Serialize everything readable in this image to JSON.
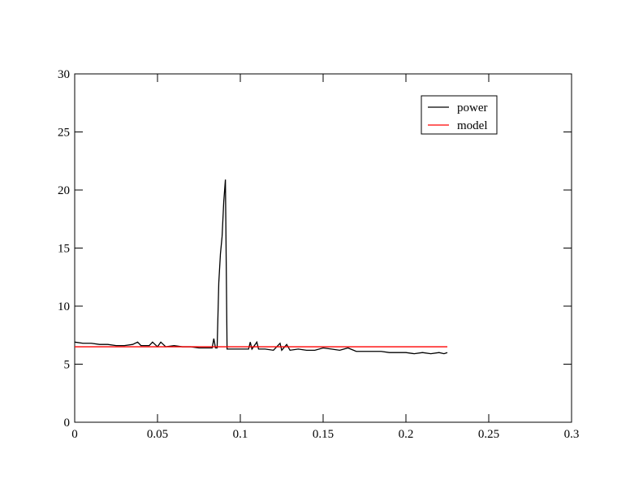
{
  "chart_data": {
    "type": "line",
    "xlim": [
      0,
      0.3
    ],
    "ylim": [
      0,
      30
    ],
    "xticks": [
      0,
      0.05,
      0.1,
      0.15,
      0.2,
      0.25,
      0.3
    ],
    "yticks": [
      0,
      5,
      10,
      15,
      20,
      25,
      30
    ],
    "legend": "upper right",
    "series": [
      {
        "name": "power",
        "color": "#000000",
        "x": [
          0,
          0.005,
          0.01,
          0.015,
          0.02,
          0.025,
          0.03,
          0.035,
          0.038,
          0.04,
          0.045,
          0.047,
          0.05,
          0.052,
          0.055,
          0.06,
          0.065,
          0.07,
          0.075,
          0.08,
          0.083,
          0.084,
          0.085,
          0.086,
          0.087,
          0.088,
          0.089,
          0.09,
          0.091,
          0.092,
          0.095,
          0.1,
          0.105,
          0.106,
          0.107,
          0.11,
          0.111,
          0.115,
          0.12,
          0.124,
          0.125,
          0.128,
          0.13,
          0.135,
          0.14,
          0.145,
          0.15,
          0.155,
          0.16,
          0.165,
          0.17,
          0.175,
          0.18,
          0.185,
          0.19,
          0.195,
          0.2,
          0.205,
          0.21,
          0.215,
          0.22,
          0.223,
          0.225
        ],
        "values": [
          6.9,
          6.8,
          6.8,
          6.7,
          6.7,
          6.6,
          6.6,
          6.7,
          6.9,
          6.6,
          6.6,
          6.9,
          6.5,
          6.9,
          6.5,
          6.6,
          6.5,
          6.5,
          6.4,
          6.4,
          6.4,
          7.2,
          6.4,
          6.4,
          12,
          14.5,
          16,
          19,
          20.9,
          6.3,
          6.3,
          6.3,
          6.3,
          6.9,
          6.3,
          6.9,
          6.3,
          6.3,
          6.2,
          6.8,
          6.2,
          6.7,
          6.2,
          6.3,
          6.2,
          6.2,
          6.4,
          6.3,
          6.2,
          6.4,
          6.1,
          6.1,
          6.1,
          6.1,
          6.0,
          6.0,
          6.0,
          5.9,
          6.0,
          5.9,
          6.0,
          5.9,
          6.0
        ]
      },
      {
        "name": "model",
        "color": "#ff0000",
        "x": [
          0,
          0.225
        ],
        "values": [
          6.5,
          6.5
        ]
      }
    ]
  }
}
